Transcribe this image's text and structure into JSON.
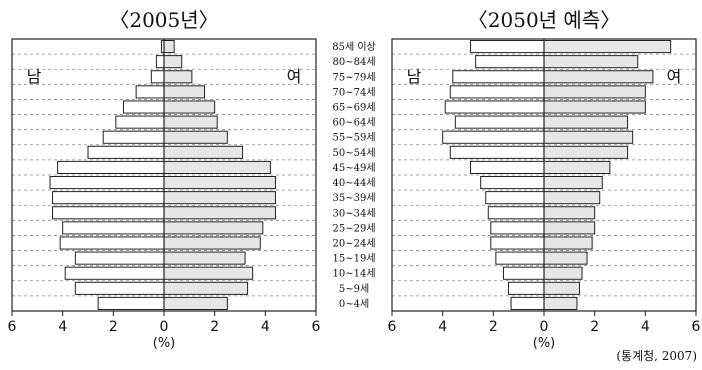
{
  "chart_data": [
    {
      "type": "bar",
      "title": "〈2005년〉",
      "male_label": "남",
      "female_label": "여",
      "categories": [
        "85세 이상",
        "80~84세",
        "75~79세",
        "70~74세",
        "65~69세",
        "60~64세",
        "55~59세",
        "50~54세",
        "45~49세",
        "40~44세",
        "35~39세",
        "30~34세",
        "25~29세",
        "20~24세",
        "15~19세",
        "10~14세",
        "5~9세",
        "0~4세"
      ],
      "series": [
        {
          "name": "남",
          "values": [
            0.1,
            0.3,
            0.5,
            1.1,
            1.6,
            1.9,
            2.4,
            3.0,
            4.2,
            4.5,
            4.4,
            4.4,
            4.0,
            4.1,
            3.5,
            3.9,
            3.5,
            2.6
          ]
        },
        {
          "name": "여",
          "values": [
            0.4,
            0.7,
            1.1,
            1.6,
            2.0,
            2.1,
            2.5,
            3.1,
            4.2,
            4.4,
            4.4,
            4.4,
            3.9,
            3.8,
            3.2,
            3.5,
            3.3,
            2.5
          ]
        }
      ],
      "xlim": [
        -6,
        6
      ],
      "xticks": [
        "6",
        "4",
        "2",
        "0",
        "2",
        "4",
        "6"
      ],
      "xlabel": "(%)"
    },
    {
      "type": "bar",
      "title": "〈2050년 예측〉",
      "male_label": "남",
      "female_label": "여",
      "categories": [
        "85세 이상",
        "80~84세",
        "75~79세",
        "70~74세",
        "65~69세",
        "60~64세",
        "55~59세",
        "50~54세",
        "45~49세",
        "40~44세",
        "35~39세",
        "30~34세",
        "25~29세",
        "20~24세",
        "15~19세",
        "10~14세",
        "5~9세",
        "0~4세"
      ],
      "series": [
        {
          "name": "남",
          "values": [
            2.9,
            2.7,
            3.6,
            3.7,
            3.9,
            3.5,
            4.0,
            3.7,
            2.9,
            2.5,
            2.3,
            2.2,
            2.1,
            2.1,
            1.9,
            1.6,
            1.4,
            1.3
          ]
        },
        {
          "name": "여",
          "values": [
            5.0,
            3.7,
            4.3,
            4.0,
            4.0,
            3.3,
            3.5,
            3.3,
            2.6,
            2.3,
            2.2,
            2.0,
            2.0,
            1.9,
            1.7,
            1.5,
            1.4,
            1.3
          ]
        }
      ],
      "xlim": [
        -6,
        6
      ],
      "xticks": [
        "6",
        "4",
        "2",
        "0",
        "2",
        "4",
        "6"
      ],
      "xlabel": "(%)"
    }
  ],
  "source": "(통계청, 2007)",
  "colors": {
    "male_fill": "#ffffff",
    "female_fill": "#e6e6e6",
    "stroke": "#222222",
    "grid": "#888888"
  }
}
